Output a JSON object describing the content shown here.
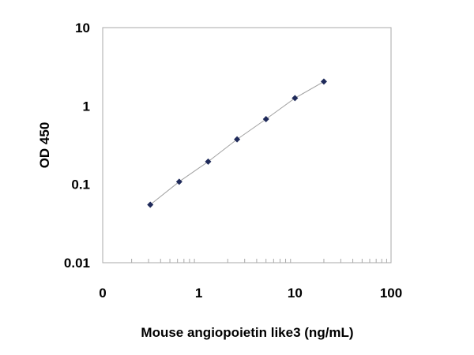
{
  "chart_data": {
    "type": "scatter",
    "title": "",
    "xlabel": "Mouse angiopoietin like3  (ng/mL)",
    "ylabel": "OD 450",
    "x_scale": "log",
    "y_scale": "log",
    "xlim": [
      0.1,
      100
    ],
    "ylim": [
      0.01,
      10
    ],
    "x_tick_labels": [
      "0",
      "1",
      "10",
      "100"
    ],
    "y_tick_labels": [
      "0.01",
      "0.1",
      "1",
      "10"
    ],
    "grid": false,
    "legend": "none",
    "series": [
      {
        "x": [
          0.3125,
          0.625,
          1.25,
          2.5,
          5,
          10,
          20
        ],
        "y": [
          0.055,
          0.108,
          0.195,
          0.375,
          0.68,
          1.26,
          2.05
        ],
        "marker": "diamond",
        "color": "#1f2a5a",
        "fit_line": true,
        "fit_color": "#a0a0a0"
      }
    ]
  }
}
